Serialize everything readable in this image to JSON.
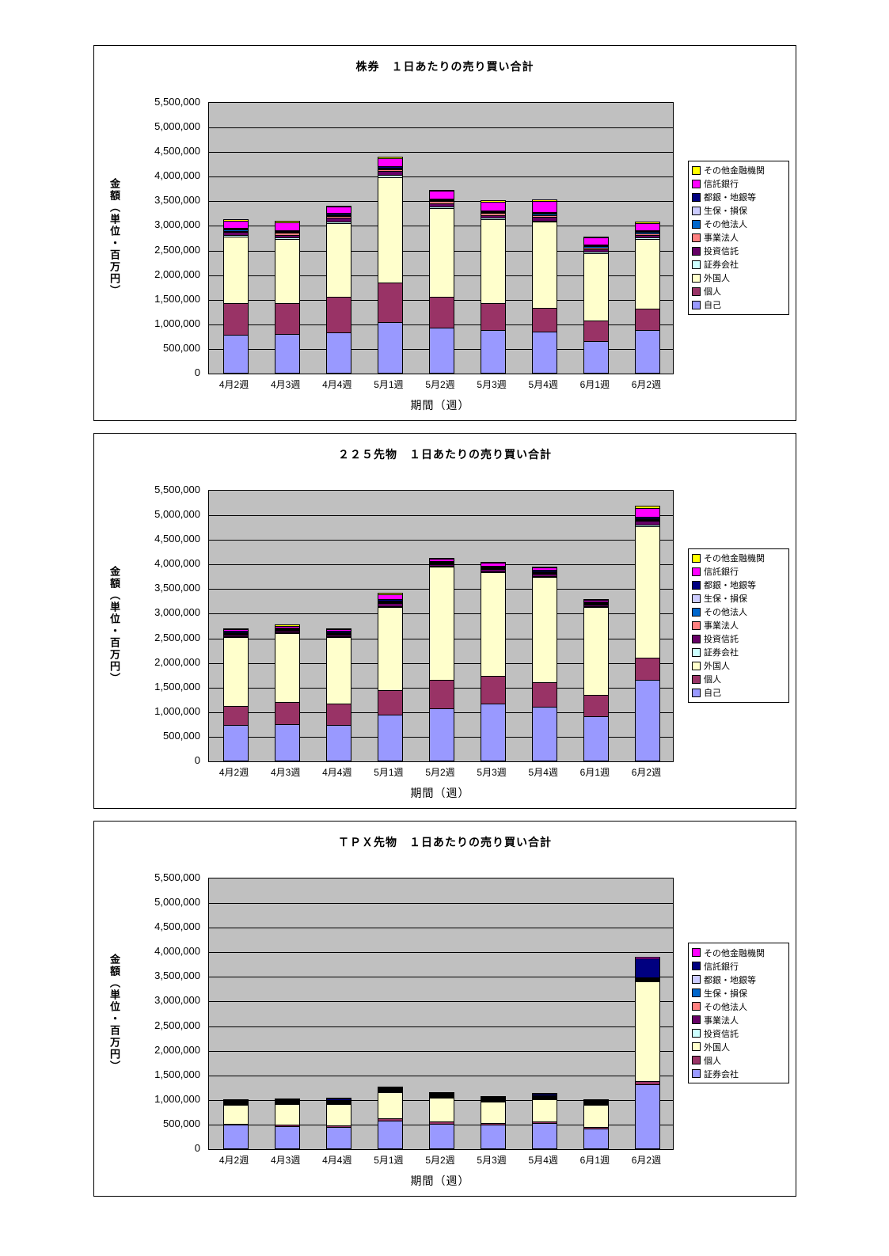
{
  "page": {
    "background": "#FFFFFF"
  },
  "chart_data": [
    {
      "type": "bar",
      "variant": "stacked",
      "title": "株券　１日あたりの売り買い合計",
      "xlabel": "期間（週）",
      "ylabel": "金額（単位・百万円）",
      "ylim": [
        0,
        5500000
      ],
      "ystep": 500000,
      "plot_background": "#C0C0C0",
      "grid": true,
      "legend_position": "right",
      "y_tick_labels": [
        "5,500,000",
        "5,000,000",
        "4,500,000",
        "4,000,000",
        "3,500,000",
        "3,000,000",
        "2,500,000",
        "2,000,000",
        "1,500,000",
        "1,000,000",
        "500,000",
        "0"
      ],
      "categories": [
        "4月2週",
        "4月3週",
        "4月4週",
        "5月1週",
        "5月2週",
        "5月3週",
        "5月4週",
        "6月1週",
        "6月2週"
      ],
      "series": [
        {
          "name": "自己",
          "color": "#9999FF",
          "values": [
            750000,
            780000,
            800000,
            1020000,
            900000,
            850000,
            820000,
            620000,
            850000
          ]
        },
        {
          "name": "個人",
          "color": "#993366",
          "values": [
            650000,
            620000,
            730000,
            790000,
            630000,
            550000,
            480000,
            430000,
            430000
          ]
        },
        {
          "name": "外国人",
          "color": "#FFFFCC",
          "values": [
            1350000,
            1300000,
            1500000,
            2150000,
            1800000,
            1700000,
            1750000,
            1360000,
            1420000
          ]
        },
        {
          "name": "証券会社",
          "color": "#CCFFFF",
          "values": [
            30000,
            30000,
            30000,
            40000,
            30000,
            30000,
            30000,
            30000,
            30000
          ]
        },
        {
          "name": "投資信託",
          "color": "#660066",
          "values": [
            60000,
            60000,
            70000,
            80000,
            70000,
            60000,
            70000,
            60000,
            60000
          ]
        },
        {
          "name": "事業法人",
          "color": "#FF8080",
          "values": [
            30000,
            40000,
            40000,
            40000,
            40000,
            40000,
            40000,
            30000,
            30000
          ]
        },
        {
          "name": "その他法人",
          "color": "#0066CC",
          "values": [
            20000,
            20000,
            20000,
            20000,
            20000,
            20000,
            20000,
            20000,
            20000
          ]
        },
        {
          "name": "生保・損保",
          "color": "#CCCCFF",
          "values": [
            10000,
            10000,
            10000,
            10000,
            10000,
            10000,
            10000,
            10000,
            10000
          ]
        },
        {
          "name": "都銀・地銀等",
          "color": "#000080",
          "values": [
            20000,
            20000,
            20000,
            20000,
            20000,
            20000,
            20000,
            20000,
            20000
          ]
        },
        {
          "name": "信託銀行",
          "color": "#FF00FF",
          "values": [
            150000,
            150000,
            130000,
            170000,
            150000,
            170000,
            230000,
            150000,
            150000
          ]
        },
        {
          "name": "その他金融機関",
          "color": "#FFFF00",
          "values": [
            30000,
            30000,
            30000,
            30000,
            30000,
            30000,
            30000,
            20000,
            30000
          ]
        }
      ]
    },
    {
      "type": "bar",
      "variant": "stacked",
      "title": "２２５先物　１日あたりの売り買い合計",
      "xlabel": "期間（週）",
      "ylabel": "金額（単位・百万円）",
      "ylim": [
        0,
        5500000
      ],
      "ystep": 500000,
      "plot_background": "#C0C0C0",
      "grid": true,
      "legend_position": "right",
      "y_tick_labels": [
        "5,500,000",
        "5,000,000",
        "4,500,000",
        "4,000,000",
        "3,500,000",
        "3,000,000",
        "2,500,000",
        "2,000,000",
        "1,500,000",
        "1,000,000",
        "500,000",
        "0"
      ],
      "categories": [
        "4月2週",
        "4月3週",
        "4月4週",
        "5月1週",
        "5月2週",
        "5月3週",
        "5月4週",
        "6月1週",
        "6月2週"
      ],
      "series": [
        {
          "name": "自己",
          "color": "#9999FF",
          "values": [
            700000,
            730000,
            700000,
            920000,
            1050000,
            1150000,
            1070000,
            880000,
            1620000
          ]
        },
        {
          "name": "個人",
          "color": "#993366",
          "values": [
            400000,
            450000,
            450000,
            490000,
            570000,
            550000,
            510000,
            440000,
            450000
          ]
        },
        {
          "name": "外国人",
          "color": "#FFFFCC",
          "values": [
            1400000,
            1390000,
            1350000,
            1700000,
            2300000,
            2120000,
            2140000,
            1780000,
            2680000
          ]
        },
        {
          "name": "証券会社",
          "color": "#CCFFFF",
          "values": [
            10000,
            10000,
            10000,
            10000,
            10000,
            10000,
            10000,
            10000,
            20000
          ]
        },
        {
          "name": "投資信託",
          "color": "#660066",
          "values": [
            30000,
            30000,
            30000,
            60000,
            40000,
            40000,
            40000,
            30000,
            80000
          ]
        },
        {
          "name": "事業法人",
          "color": "#FF8080",
          "values": [
            10000,
            10000,
            10000,
            10000,
            10000,
            10000,
            10000,
            10000,
            20000
          ]
        },
        {
          "name": "その他法人",
          "color": "#0066CC",
          "values": [
            10000,
            10000,
            10000,
            10000,
            10000,
            10000,
            10000,
            10000,
            10000
          ]
        },
        {
          "name": "生保・損保",
          "color": "#CCCCFF",
          "values": [
            10000,
            10000,
            10000,
            10000,
            10000,
            10000,
            10000,
            10000,
            20000
          ]
        },
        {
          "name": "都銀・地銀等",
          "color": "#000080",
          "values": [
            20000,
            20000,
            20000,
            30000,
            20000,
            20000,
            30000,
            20000,
            40000
          ]
        },
        {
          "name": "信託銀行",
          "color": "#FF00FF",
          "values": [
            40000,
            40000,
            40000,
            90000,
            40000,
            60000,
            50000,
            30000,
            170000
          ]
        },
        {
          "name": "その他金融機関",
          "color": "#FFFF00",
          "values": [
            20000,
            20000,
            20000,
            40000,
            20000,
            20000,
            20000,
            10000,
            40000
          ]
        }
      ]
    },
    {
      "type": "bar",
      "variant": "stacked",
      "title": "ＴＰＸ先物　１日あたりの売り買い合計",
      "xlabel": "期間（週）",
      "ylabel": "金額（単位・百万円）",
      "ylim": [
        0,
        5500000
      ],
      "ystep": 500000,
      "plot_background": "#C0C0C0",
      "grid": true,
      "legend_position": "right",
      "y_tick_labels": [
        "5,500,000",
        "5,000,000",
        "4,500,000",
        "4,000,000",
        "3,500,000",
        "3,000,000",
        "2,500,000",
        "2,000,000",
        "1,500,000",
        "1,000,000",
        "500,000",
        "0"
      ],
      "categories": [
        "4月2週",
        "4月3週",
        "4月4週",
        "5月1週",
        "5月2週",
        "5月3週",
        "5月4週",
        "6月1週",
        "6月2週"
      ],
      "series": [
        {
          "name": "証券会社",
          "color": "#9999FF",
          "values": [
            460000,
            430000,
            420000,
            550000,
            490000,
            470000,
            500000,
            390000,
            1280000
          ]
        },
        {
          "name": "個人",
          "color": "#993366",
          "values": [
            30000,
            30000,
            30000,
            40000,
            40000,
            35000,
            35000,
            30000,
            70000
          ]
        },
        {
          "name": "外国人",
          "color": "#FFFFCC",
          "values": [
            380000,
            430000,
            440000,
            540000,
            480000,
            430000,
            450000,
            450000,
            2020000
          ]
        },
        {
          "name": "投資信託",
          "color": "#CCFFFF",
          "values": [
            10000,
            10000,
            10000,
            10000,
            10000,
            10000,
            10000,
            10000,
            30000
          ]
        },
        {
          "name": "事業法人",
          "color": "#660066",
          "values": [
            5000,
            5000,
            5000,
            5000,
            5000,
            5000,
            5000,
            5000,
            10000
          ]
        },
        {
          "name": "その他法人",
          "color": "#FF8080",
          "values": [
            5000,
            5000,
            5000,
            5000,
            5000,
            5000,
            5000,
            5000,
            10000
          ]
        },
        {
          "name": "生保・損保",
          "color": "#0066CC",
          "values": [
            5000,
            5000,
            5000,
            5000,
            5000,
            5000,
            5000,
            5000,
            10000
          ]
        },
        {
          "name": "都銀・地銀等",
          "color": "#CCCCFF",
          "values": [
            5000,
            5000,
            5000,
            5000,
            5000,
            5000,
            5000,
            5000,
            10000
          ]
        },
        {
          "name": "信託銀行",
          "color": "#000080",
          "values": [
            10000,
            15000,
            30000,
            20000,
            15000,
            20000,
            30000,
            15000,
            380000
          ]
        },
        {
          "name": "その他金融機関",
          "color": "#FF00FF",
          "values": [
            5000,
            5000,
            5000,
            5000,
            5000,
            5000,
            5000,
            5000,
            30000
          ]
        }
      ]
    }
  ]
}
